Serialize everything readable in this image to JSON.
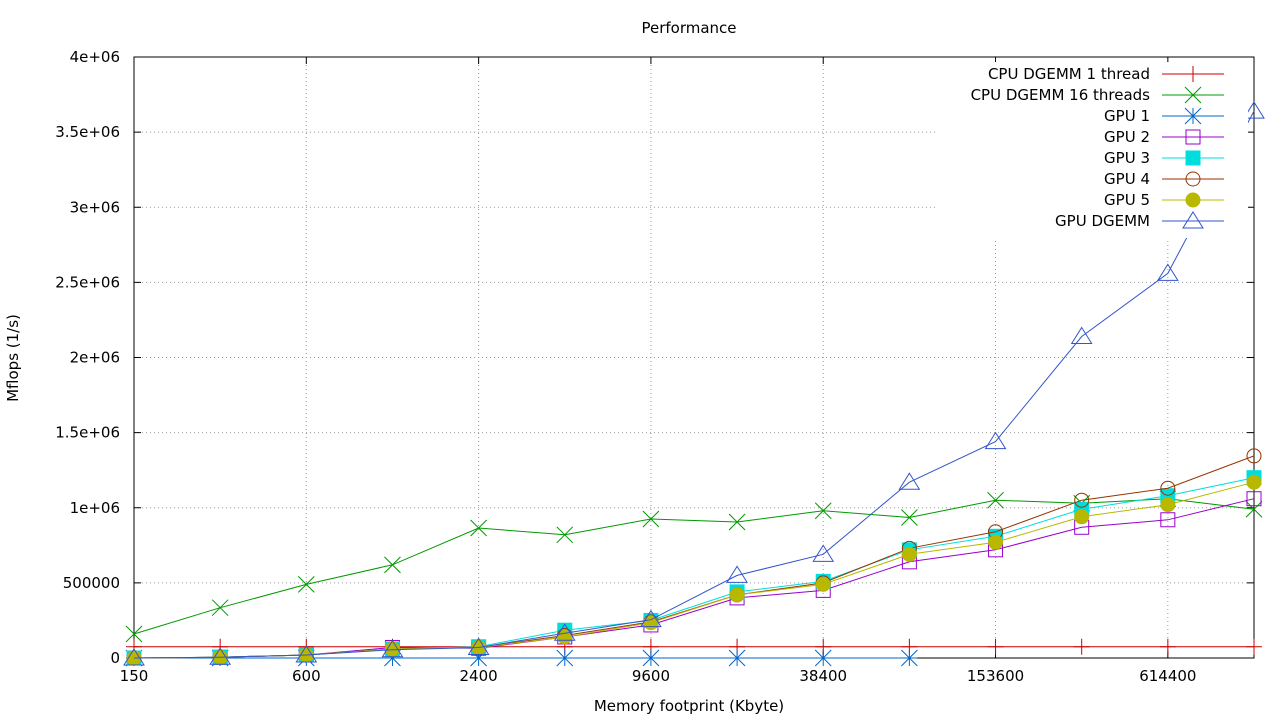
{
  "chart_data": {
    "type": "line",
    "title": "Performance",
    "xlabel": "Memory footprint (Kbyte)",
    "ylabel": "Mflops (1/s)",
    "x_scale": "log2",
    "x_ticks": [
      150,
      600,
      2400,
      9600,
      38400,
      153600,
      614400
    ],
    "y_ticks": [
      0,
      500000,
      1000000,
      1500000,
      2000000,
      2500000,
      3000000,
      3500000,
      4000000
    ],
    "y_tick_labels": [
      "0",
      "500000",
      "1e+06",
      "1.5e+06",
      "2e+06",
      "2.5e+06",
      "3e+06",
      "3.5e+06",
      "4e+06"
    ],
    "xlim": [
      150,
      1228800
    ],
    "ylim": [
      0,
      4000000
    ],
    "grid": true,
    "legend_position": "top-right",
    "series": [
      {
        "name": "CPU DGEMM 1 thread",
        "color": "#cc0000",
        "marker": "plus",
        "x": [
          150,
          300,
          600,
          1200,
          2400,
          4800,
          9600,
          19200,
          38400,
          76800,
          153600,
          307200,
          614400,
          1228800
        ],
        "y": [
          75000,
          75000,
          75000,
          75000,
          75000,
          75000,
          75000,
          75000,
          75000,
          75000,
          75000,
          75000,
          75000,
          75000
        ]
      },
      {
        "name": "CPU DGEMM 16 threads",
        "color": "#009900",
        "marker": "cross",
        "x": [
          150,
          300,
          600,
          1200,
          2400,
          4800,
          9600,
          19200,
          38400,
          76800,
          153600,
          307200,
          614400,
          1228800
        ],
        "y": [
          160000,
          335000,
          490000,
          620000,
          865000,
          820000,
          925000,
          905000,
          980000,
          935000,
          1050000,
          1030000,
          1060000,
          990000
        ]
      },
      {
        "name": "GPU 1",
        "color": "#0066cc",
        "marker": "star",
        "x": [
          150,
          300,
          600,
          1200,
          2400,
          4800,
          9600,
          19200,
          38400,
          76800
        ],
        "y": [
          0,
          0,
          0,
          0,
          0,
          0,
          0,
          0,
          0,
          0
        ]
      },
      {
        "name": "GPU 2",
        "color": "#9900cc",
        "marker": "square-open",
        "x": [
          150,
          300,
          600,
          1200,
          2400,
          4800,
          9600,
          19200,
          38400,
          76800,
          153600,
          307200,
          614400,
          1228800
        ],
        "y": [
          0,
          5000,
          20000,
          70000,
          65000,
          140000,
          220000,
          400000,
          450000,
          640000,
          720000,
          870000,
          920000,
          1060000
        ]
      },
      {
        "name": "GPU 3",
        "color": "#00dddd",
        "marker": "square-filled",
        "x": [
          150,
          300,
          600,
          1200,
          2400,
          4800,
          9600,
          19200,
          38400,
          76800,
          153600,
          307200,
          614400,
          1228800
        ],
        "y": [
          0,
          5000,
          20000,
          60000,
          75000,
          185000,
          250000,
          440000,
          510000,
          720000,
          810000,
          990000,
          1080000,
          1200000
        ]
      },
      {
        "name": "GPU 4",
        "color": "#993300",
        "marker": "circle-open",
        "x": [
          150,
          300,
          600,
          1200,
          2400,
          4800,
          9600,
          19200,
          38400,
          76800,
          153600,
          307200,
          614400,
          1228800
        ],
        "y": [
          0,
          5000,
          20000,
          60000,
          70000,
          150000,
          240000,
          420000,
          500000,
          730000,
          840000,
          1050000,
          1130000,
          1345000
        ]
      },
      {
        "name": "GPU 5",
        "color": "#b8b800",
        "marker": "circle-filled",
        "x": [
          150,
          300,
          600,
          1200,
          2400,
          4800,
          9600,
          19200,
          38400,
          76800,
          153600,
          307200,
          614400,
          1228800
        ],
        "y": [
          0,
          5000,
          20000,
          60000,
          70000,
          140000,
          235000,
          420000,
          490000,
          690000,
          770000,
          940000,
          1020000,
          1170000
        ]
      },
      {
        "name": "GPU DGEMM",
        "color": "#3355cc",
        "marker": "triangle-open",
        "x": [
          150,
          300,
          600,
          1200,
          2400,
          4800,
          9600,
          19200,
          38400,
          76800,
          153600,
          307200,
          614400,
          1228800
        ],
        "y": [
          0,
          5000,
          20000,
          55000,
          70000,
          165000,
          255000,
          550000,
          690000,
          1170000,
          1440000,
          2140000,
          2560000,
          3640000
        ]
      }
    ]
  }
}
